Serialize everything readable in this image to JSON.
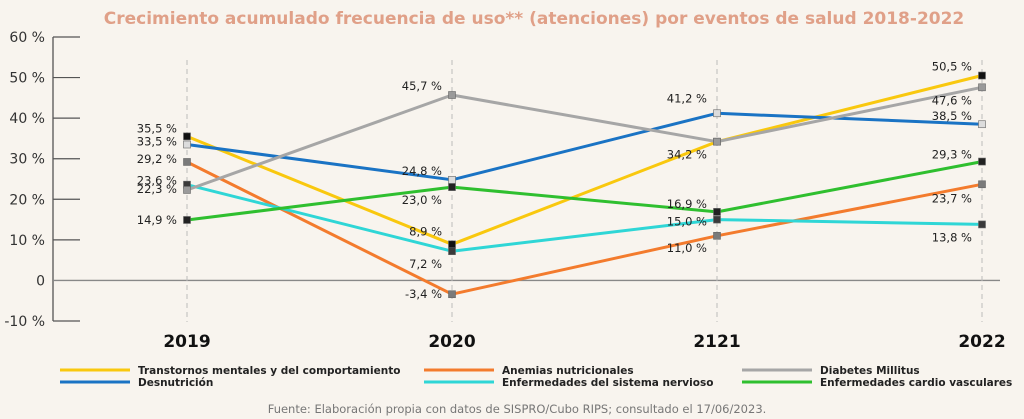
{
  "chart_data": {
    "type": "line",
    "title": "Crecimiento acumulado frecuencia de uso** (atenciones) por eventos de salud 2018-2022",
    "xlabel": "",
    "ylabel": "",
    "categories": [
      "2019",
      "2020",
      "2121",
      "2022"
    ],
    "ylim": [
      -10,
      60
    ],
    "yticks": [
      {
        "value": 60,
        "label": "60 %"
      },
      {
        "value": 50,
        "label": "50 %"
      },
      {
        "value": 40,
        "label": "40 %"
      },
      {
        "value": 30,
        "label": "30 %"
      },
      {
        "value": 20,
        "label": "20 %"
      },
      {
        "value": 10,
        "label": "10 %"
      },
      {
        "value": 0,
        "label": "0"
      },
      {
        "value": -10,
        "label": "-10 %"
      }
    ],
    "grid": false,
    "legend_position": "bottom",
    "series": [
      {
        "name": "Transtornos mentales y del comportamiento",
        "color": "#f9c80e",
        "marker": "#111111",
        "values": [
          35.5,
          8.9,
          34.2,
          50.5
        ],
        "labels": [
          "35,5 %",
          "8,9 %",
          "34,2 %",
          "50,5 %"
        ]
      },
      {
        "name": "Desnutrición",
        "color": "#1a73c4",
        "marker": "#dcdcdc",
        "values": [
          33.5,
          24.8,
          41.2,
          38.5
        ],
        "labels": [
          "33,5 %",
          "24,8 %",
          "41,2 %",
          "38,5 %"
        ]
      },
      {
        "name": "Anemias nutricionales",
        "color": "#f37b2d",
        "marker": "#7a7a7a",
        "values": [
          29.2,
          -3.4,
          11.0,
          23.7
        ],
        "labels": [
          "29,2 %",
          "-3,4 %",
          "11,0 %",
          "23,7 %"
        ]
      },
      {
        "name": "Enfermedades del sistema nervioso",
        "color": "#2fd6d6",
        "marker": "#3a3a3a",
        "values": [
          23.6,
          7.2,
          15.0,
          13.8
        ],
        "labels": [
          "23,6 %",
          "7,2 %",
          "15,0 %",
          "13,8 %"
        ]
      },
      {
        "name": "Diabetes Millitus",
        "color": "#a6a6a6",
        "marker": "#9a9a9a",
        "values": [
          22.3,
          45.7,
          34.2,
          47.6
        ],
        "labels": [
          "22,3 %",
          "45,7 %",
          "",
          "47,6 %"
        ]
      },
      {
        "name": "Enfermedades cardio vasculares",
        "color": "#2fbf2f",
        "marker": "#222222",
        "values": [
          14.9,
          23.0,
          16.9,
          29.3
        ],
        "labels": [
          "14,9 %",
          "23,0 %",
          "16,9 %",
          "29,3 %"
        ]
      }
    ],
    "legend_order": [
      0,
      2,
      4,
      1,
      3,
      5
    ],
    "source": "Fuente: Elaboración propia con datos de SISPRO/Cubo RIPS; consultado el 17/06/2023."
  }
}
